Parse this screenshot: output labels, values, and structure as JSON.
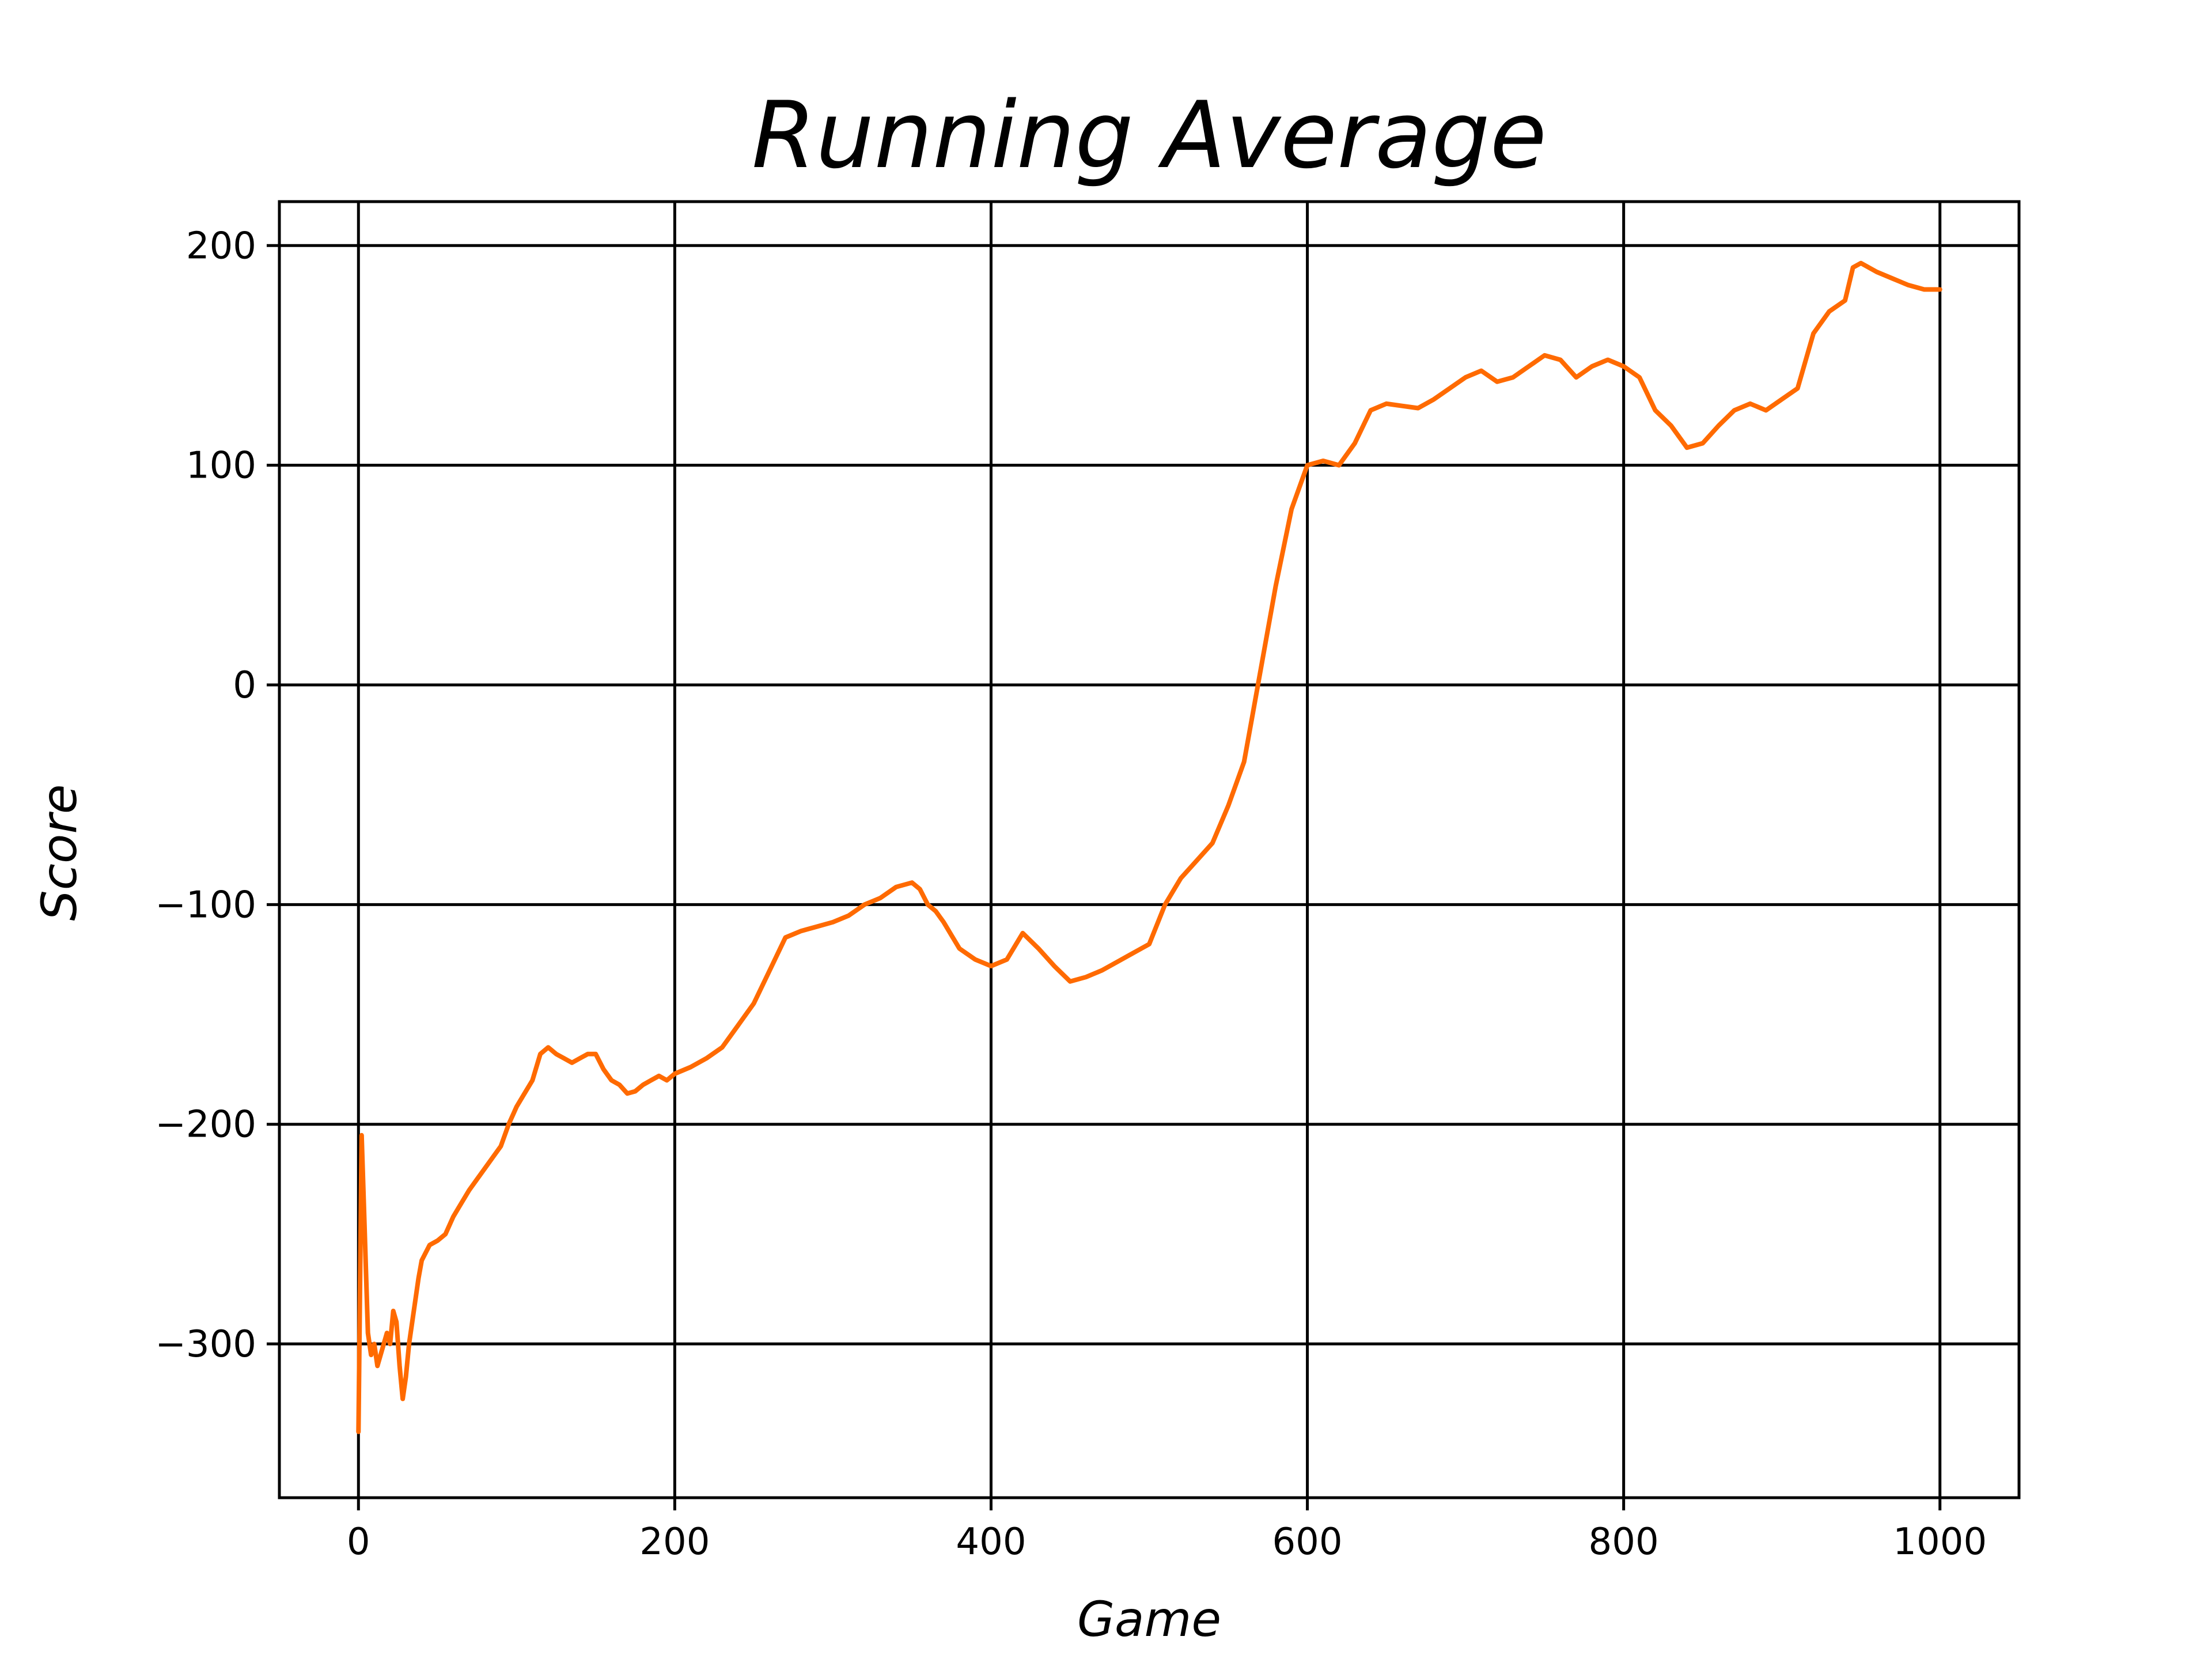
{
  "chart_data": {
    "type": "line",
    "title": "Running Average",
    "xlabel": "Game",
    "ylabel": "Score",
    "xlim": [
      -50,
      1050
    ],
    "ylim": [
      -370,
      220
    ],
    "xticks": [
      0,
      200,
      400,
      600,
      800,
      1000
    ],
    "yticks": [
      -300,
      -200,
      -100,
      0,
      100,
      200
    ],
    "xtick_labels": [
      "0",
      "200",
      "400",
      "600",
      "800",
      "1000"
    ],
    "ytick_labels": [
      "−300",
      "−200",
      "−100",
      "0",
      "100",
      "200"
    ],
    "grid": true,
    "colors": {
      "line": "#ff6a00",
      "grid": "#000000",
      "axes": "#000000"
    },
    "series": [
      {
        "x": [
          0,
          2,
          4,
          6,
          8,
          10,
          12,
          14,
          16,
          18,
          20,
          22,
          24,
          26,
          28,
          30,
          32,
          34,
          36,
          38,
          40,
          45,
          50,
          55,
          60,
          65,
          70,
          75,
          80,
          85,
          90,
          95,
          100,
          105,
          110,
          115,
          120,
          125,
          130,
          135,
          140,
          145,
          150,
          155,
          160,
          165,
          170,
          175,
          180,
          185,
          190,
          195,
          200,
          210,
          220,
          230,
          240,
          250,
          260,
          270,
          280,
          290,
          300,
          310,
          320,
          330,
          340,
          350,
          355,
          360,
          365,
          370,
          380,
          390,
          400,
          410,
          420,
          430,
          440,
          450,
          460,
          470,
          480,
          490,
          500,
          510,
          520,
          530,
          540,
          550,
          560,
          565,
          570,
          580,
          590,
          600,
          610,
          620,
          630,
          640,
          650,
          660,
          670,
          680,
          690,
          700,
          710,
          720,
          730,
          740,
          750,
          760,
          770,
          780,
          790,
          800,
          810,
          820,
          830,
          840,
          850,
          860,
          870,
          880,
          890,
          900,
          910,
          920,
          930,
          940,
          945,
          950,
          960,
          970,
          980,
          990,
          1000
        ],
        "values": [
          -340,
          -205,
          -250,
          -295,
          -305,
          -300,
          -310,
          -305,
          -300,
          -295,
          -300,
          -285,
          -290,
          -310,
          -325,
          -315,
          -300,
          -290,
          -280,
          -270,
          -262,
          -255,
          -253,
          -250,
          -242,
          -236,
          -230,
          -225,
          -220,
          -215,
          -210,
          -200,
          -192,
          -186,
          -180,
          -168,
          -165,
          -168,
          -170,
          -172,
          -170,
          -168,
          -168,
          -175,
          -180,
          -182,
          -186,
          -185,
          -182,
          -180,
          -178,
          -180,
          -177,
          -174,
          -170,
          -165,
          -155,
          -145,
          -130,
          -115,
          -112,
          -110,
          -108,
          -105,
          -100,
          -97,
          -92,
          -90,
          -93,
          -100,
          -103,
          -108,
          -120,
          -125,
          -128,
          -125,
          -113,
          -120,
          -128,
          -135,
          -133,
          -130,
          -126,
          -122,
          -118,
          -100,
          -88,
          -80,
          -72,
          -55,
          -35,
          -15,
          5,
          45,
          80,
          100,
          102,
          100,
          110,
          125,
          128,
          127,
          126,
          130,
          135,
          140,
          143,
          138,
          140,
          145,
          150,
          148,
          140,
          145,
          148,
          145,
          140,
          125,
          118,
          108,
          110,
          118,
          125,
          128,
          125,
          130,
          135,
          160,
          170,
          175,
          190,
          192,
          188,
          185,
          182,
          180,
          180
        ]
      }
    ]
  }
}
